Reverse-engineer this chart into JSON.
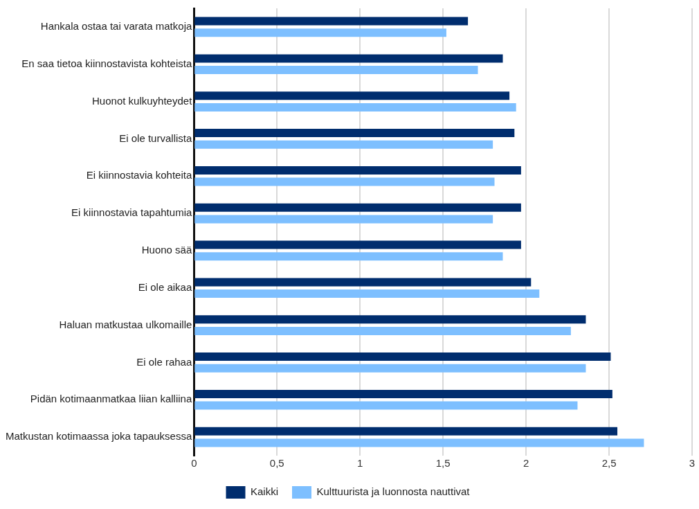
{
  "chart_data": {
    "type": "bar",
    "orientation": "horizontal",
    "categories": [
      "Hankala ostaa tai varata matkoja",
      "En saa tietoa kiinnostavista kohteista",
      "Huonot kulkuyhteydet",
      "Ei ole turvallista",
      "Ei kiinnostavia kohteita",
      "Ei kiinnostavia tapahtumia",
      "Huono sää",
      "Ei ole aikaa",
      "Haluan matkustaa ulkomaille",
      "Ei ole rahaa",
      "Pidän kotimaanmatkaa liian kalliina",
      "Matkustan kotimaassa joka tapauksessa"
    ],
    "series": [
      {
        "name": "Kaikki",
        "color": "#002d6e",
        "values": [
          1.65,
          1.86,
          1.9,
          1.93,
          1.97,
          1.97,
          1.97,
          2.03,
          2.36,
          2.51,
          2.52,
          2.55
        ]
      },
      {
        "name": "Kulttuurista ja luonnosta nauttivat",
        "color": "#7dbfff",
        "values": [
          1.52,
          1.71,
          1.94,
          1.8,
          1.81,
          1.8,
          1.86,
          2.08,
          2.27,
          2.36,
          2.31,
          2.71
        ]
      }
    ],
    "xlim": [
      0,
      3
    ],
    "xticks": [
      0,
      {
        "value": 0.5,
        "label": "0,5"
      },
      1,
      {
        "value": 1.5,
        "label": "1,5"
      },
      2,
      {
        "value": 2.5,
        "label": "2,5"
      },
      3
    ],
    "grid": "x",
    "legend": "bottom"
  }
}
